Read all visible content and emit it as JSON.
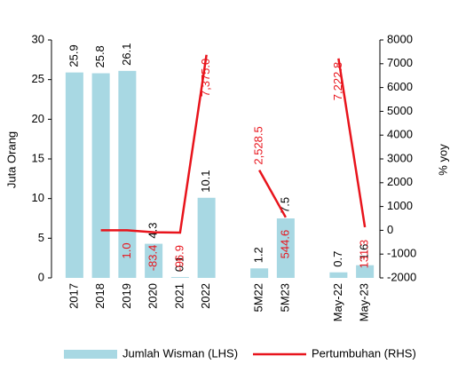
{
  "chart_data": {
    "type": "bar-line",
    "categories": [
      "2017",
      "2018",
      "2019",
      "2020",
      "2021",
      "2022",
      null,
      "5M22",
      "5M23",
      null,
      "May-22",
      "May-23"
    ],
    "series": [
      {
        "name": "Jumlah Wisman (LHS)",
        "type": "bar",
        "color": "#a8d8e3",
        "values": [
          25.9,
          25.8,
          26.1,
          4.3,
          0.1,
          10.1,
          null,
          1.2,
          7.5,
          null,
          0.7,
          1.6
        ]
      },
      {
        "name": "Pertumbuhan (RHS)",
        "type": "line",
        "axis": "y2",
        "color": "#e8141c",
        "values": [
          null,
          0,
          1.0,
          -83.4,
          -96.9,
          7375.0,
          null,
          2528.5,
          544.6,
          null,
          7222.8,
          131.3
        ],
        "value_labels": [
          null,
          null,
          "1.0",
          "-83.4",
          "-96.9",
          "7,375.0",
          null,
          "2,528.5",
          "544.6",
          null,
          "7,222.8",
          "131.3"
        ]
      }
    ],
    "ylabel": "Juta Orang",
    "y2label": "% yoy",
    "ylim": [
      0,
      30
    ],
    "yticks": [
      0,
      5,
      10,
      15,
      20,
      25,
      30
    ],
    "y2lim": [
      -2000,
      8000
    ],
    "y2ticks": [
      -2000,
      -1000,
      0,
      1000,
      2000,
      3000,
      4000,
      5000,
      6000,
      7000,
      8000
    ],
    "legend": "bottom"
  }
}
